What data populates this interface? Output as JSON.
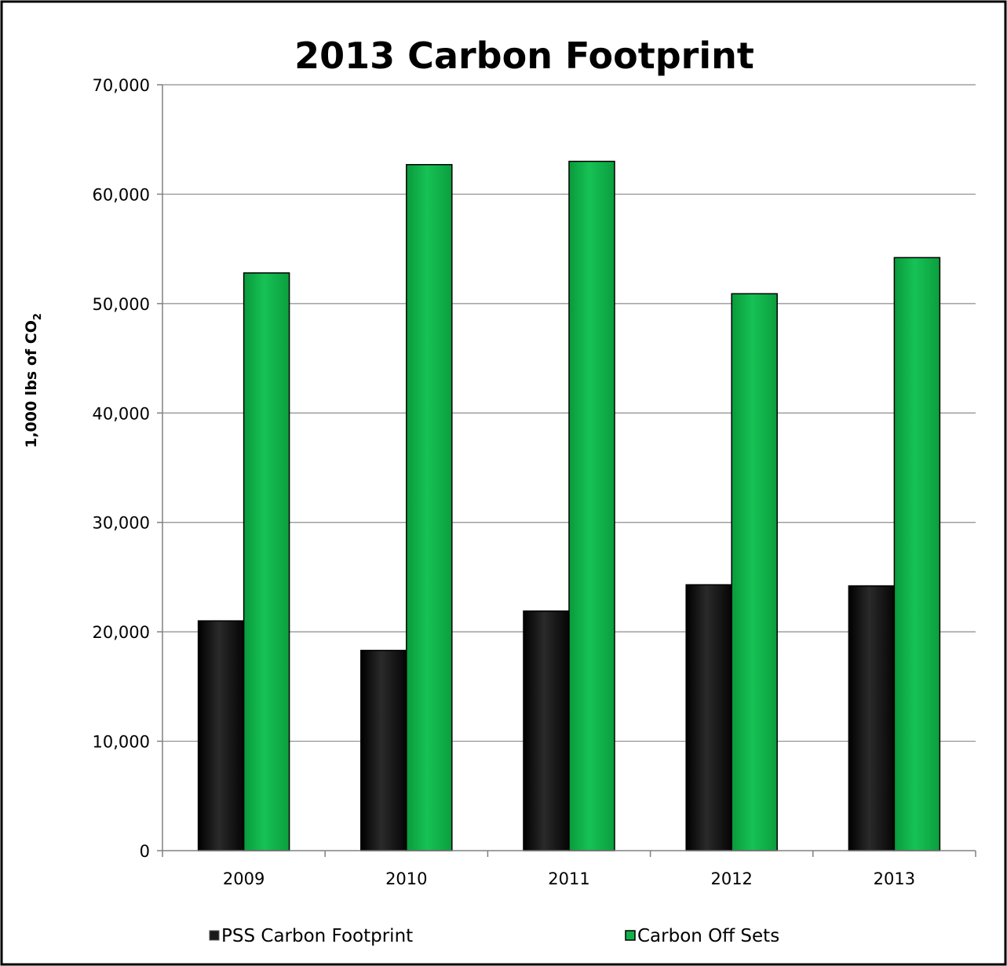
{
  "chart_data": {
    "type": "bar",
    "title": "2013 Carbon Footprint",
    "ylabel_main": "1,000 lbs of CO",
    "ylabel_sub": "2",
    "xlabel": "",
    "categories": [
      "2009",
      "2010",
      "2011",
      "2012",
      "2013"
    ],
    "ylim": [
      0,
      70000
    ],
    "yticks": [
      0,
      10000,
      20000,
      30000,
      40000,
      50000,
      60000,
      70000
    ],
    "ytick_labels": [
      "0",
      "10,000",
      "20,000",
      "30,000",
      "40,000",
      "50,000",
      "60,000",
      "70,000"
    ],
    "grid": true,
    "legend_position": "bottom",
    "series": [
      {
        "name": "PSS Carbon Footprint",
        "color": "#1a1a1a",
        "values": [
          21000,
          18300,
          21900,
          24300,
          24200
        ]
      },
      {
        "name": "Carbon Off Sets",
        "color": "#12b24a",
        "values": [
          52800,
          62700,
          63000,
          50900,
          54200
        ]
      }
    ]
  }
}
